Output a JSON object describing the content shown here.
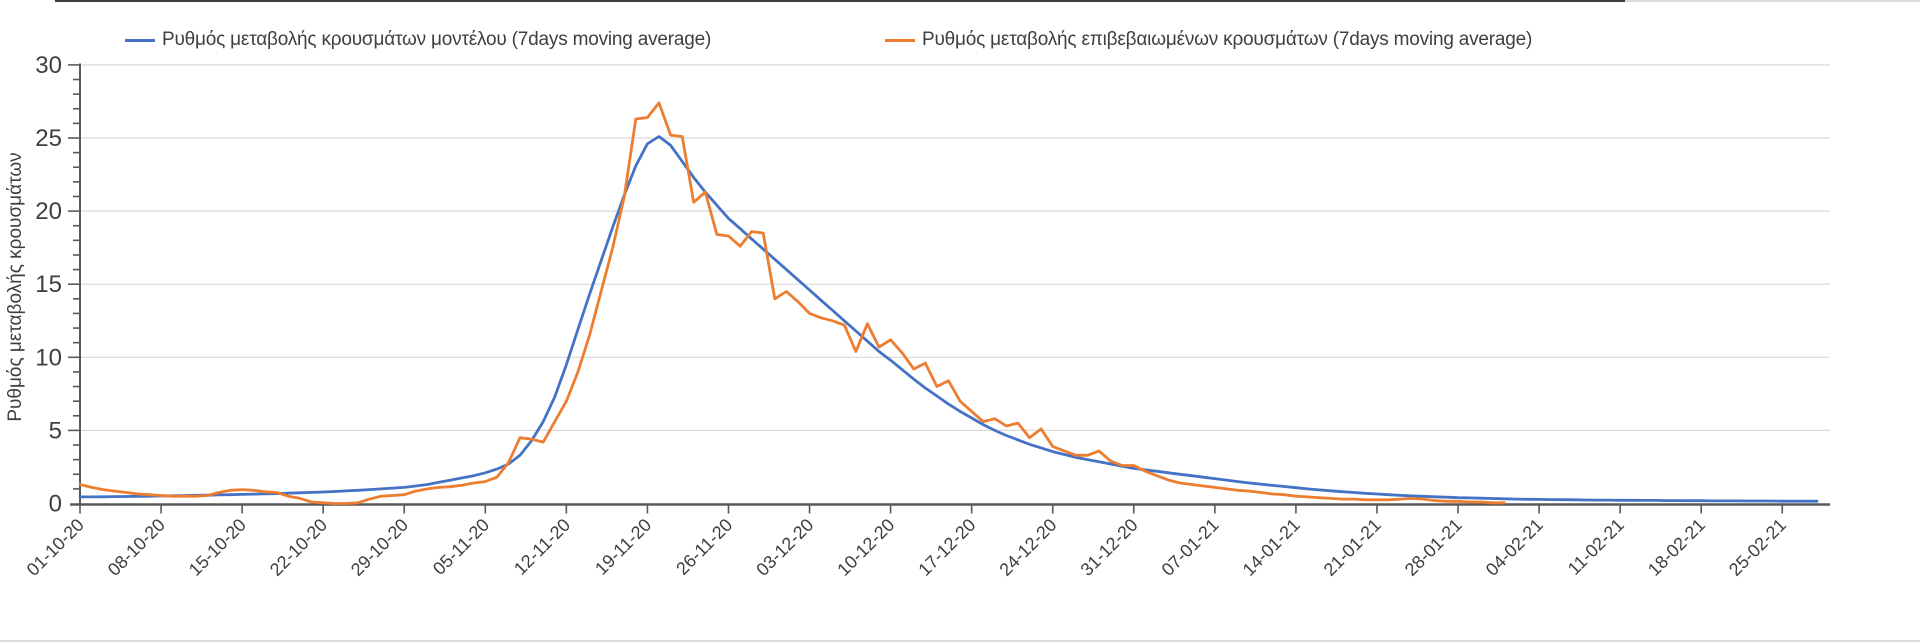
{
  "page": {
    "background": "#ffffff",
    "top_edge_dark_color": "#404040",
    "top_edge_light_color": "#d9d9d9",
    "bottom_edge_color": "#d9d9d9"
  },
  "legend": {
    "items": [
      {
        "label": "Ρυθμός μεταβολής κρουσμάτων μοντέλου (7days moving average)",
        "color": "#4472C4"
      },
      {
        "label": "Ρυθμός μεταβολής επιβεβαιωμένων κρουσμάτων (7days moving average)",
        "color": "#ED7D31"
      }
    ]
  },
  "axis_style": {
    "axis_line_color": "#595959",
    "tick_color": "#595959",
    "tick_label_color": "#3f3f3f",
    "gridline_color": "#d9d9d9"
  },
  "chart_data": {
    "type": "line",
    "title": "",
    "xlabel": "",
    "ylabel": "Ρυθμός μεταβολής κρουσμάτων",
    "ylim": [
      0,
      30
    ],
    "y_ticks": [
      0,
      5,
      10,
      15,
      20,
      25,
      30
    ],
    "y_minor_tick_step": 1,
    "grid": "horizontal-only",
    "legend_position": "top",
    "x_start_date": "01-10-20",
    "x_tick_interval_days": 7,
    "x_tick_labels": [
      "01-10-20",
      "08-10-20",
      "15-10-20",
      "22-10-20",
      "29-10-20",
      "05-11-20",
      "12-11-20",
      "19-11-20",
      "26-11-20",
      "03-12-20",
      "10-12-20",
      "17-12-20",
      "24-12-20",
      "31-12-20",
      "07-01-21",
      "14-01-21",
      "21-01-21",
      "28-01-21",
      "04-02-21",
      "11-02-21",
      "18-02-21",
      "25-02-21"
    ],
    "series": [
      {
        "name": "Ρυθμός μεταβολής κρουσμάτων μοντέλου (7days moving average)",
        "color": "#4472C4",
        "start_day": 0,
        "daily_values": [
          0.45,
          0.45,
          0.46,
          0.47,
          0.48,
          0.49,
          0.5,
          0.51,
          0.53,
          0.54,
          0.56,
          0.57,
          0.59,
          0.6,
          0.62,
          0.64,
          0.66,
          0.68,
          0.71,
          0.73,
          0.76,
          0.79,
          0.82,
          0.86,
          0.9,
          0.95,
          1.0,
          1.05,
          1.1,
          1.2,
          1.3,
          1.45,
          1.6,
          1.75,
          1.9,
          2.1,
          2.35,
          2.7,
          3.3,
          4.3,
          5.6,
          7.3,
          9.5,
          11.9,
          14.3,
          16.6,
          18.9,
          21.1,
          23.1,
          24.6,
          25.1,
          24.5,
          23.4,
          22.3,
          21.3,
          20.4,
          19.5,
          18.8,
          18.1,
          17.4,
          16.7,
          16.0,
          15.3,
          14.6,
          13.9,
          13.2,
          12.5,
          11.8,
          11.1,
          10.4,
          9.8,
          9.15,
          8.5,
          7.9,
          7.35,
          6.8,
          6.3,
          5.85,
          5.4,
          5.0,
          4.65,
          4.35,
          4.05,
          3.8,
          3.55,
          3.35,
          3.15,
          3.0,
          2.85,
          2.7,
          2.55,
          2.4,
          2.3,
          2.2,
          2.1,
          2.0,
          1.9,
          1.8,
          1.7,
          1.6,
          1.5,
          1.4,
          1.32,
          1.24,
          1.16,
          1.08,
          1.0,
          0.93,
          0.87,
          0.81,
          0.75,
          0.7,
          0.65,
          0.6,
          0.56,
          0.52,
          0.49,
          0.46,
          0.43,
          0.4,
          0.38,
          0.36,
          0.34,
          0.32,
          0.3,
          0.29,
          0.28,
          0.27,
          0.26,
          0.25,
          0.24,
          0.23,
          0.23,
          0.22,
          0.22,
          0.21,
          0.21,
          0.2,
          0.2,
          0.19,
          0.19,
          0.18,
          0.18,
          0.18,
          0.17,
          0.17,
          0.17,
          0.16,
          0.16,
          0.16,
          0.16
        ]
      },
      {
        "name": "Ρυθμός μεταβολής επιβεβαιωμένων κρουσμάτων (7days moving average)",
        "color": "#ED7D31",
        "start_day": 0,
        "daily_values": [
          1.3,
          1.1,
          0.95,
          0.85,
          0.75,
          0.65,
          0.6,
          0.55,
          0.5,
          0.5,
          0.5,
          0.55,
          0.75,
          0.9,
          0.95,
          0.9,
          0.8,
          0.75,
          0.5,
          0.35,
          0.1,
          0.05,
          0,
          0,
          0.05,
          0.3,
          0.5,
          0.55,
          0.6,
          0.85,
          1.0,
          1.1,
          1.15,
          1.25,
          1.4,
          1.5,
          1.8,
          2.8,
          4.5,
          4.4,
          4.2,
          5.6,
          7.0,
          9.0,
          11.5,
          14.5,
          17.5,
          21.0,
          26.3,
          26.4,
          27.4,
          25.2,
          25.1,
          20.6,
          21.3,
          18.4,
          18.3,
          17.6,
          18.6,
          18.5,
          14.0,
          14.5,
          13.8,
          13.0,
          12.7,
          12.5,
          12.2,
          10.4,
          12.3,
          10.7,
          11.2,
          10.3,
          9.2,
          9.6,
          8.0,
          8.4,
          7.0,
          6.3,
          5.6,
          5.8,
          5.3,
          5.5,
          4.5,
          5.1,
          3.9,
          3.6,
          3.3,
          3.3,
          3.6,
          2.9,
          2.6,
          2.6,
          2.2,
          1.9,
          1.6,
          1.4,
          1.3,
          1.2,
          1.1,
          1.0,
          0.9,
          0.85,
          0.75,
          0.65,
          0.6,
          0.5,
          0.45,
          0.4,
          0.35,
          0.3,
          0.3,
          0.25,
          0.25,
          0.25,
          0.3,
          0.35,
          0.3,
          0.2,
          0.15,
          0.15,
          0.1,
          0.1,
          0.05,
          0.05
        ]
      }
    ]
  }
}
